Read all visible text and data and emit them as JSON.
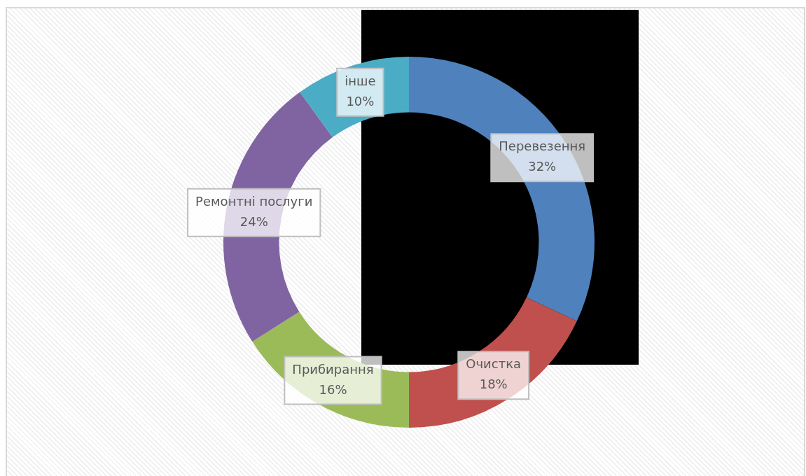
{
  "chart_data": {
    "type": "donut",
    "categories": [
      "Перевезення",
      "Очистка",
      "Прибирання",
      "Ремонтні послуги",
      "інше"
    ],
    "values": [
      32,
      18,
      16,
      24,
      10
    ],
    "colors": [
      "#4f81bd",
      "#c0504d",
      "#9bbb59",
      "#8064a2",
      "#4bacc6"
    ],
    "value_labels": [
      "32%",
      "18%",
      "16%",
      "24%",
      "10%"
    ]
  }
}
